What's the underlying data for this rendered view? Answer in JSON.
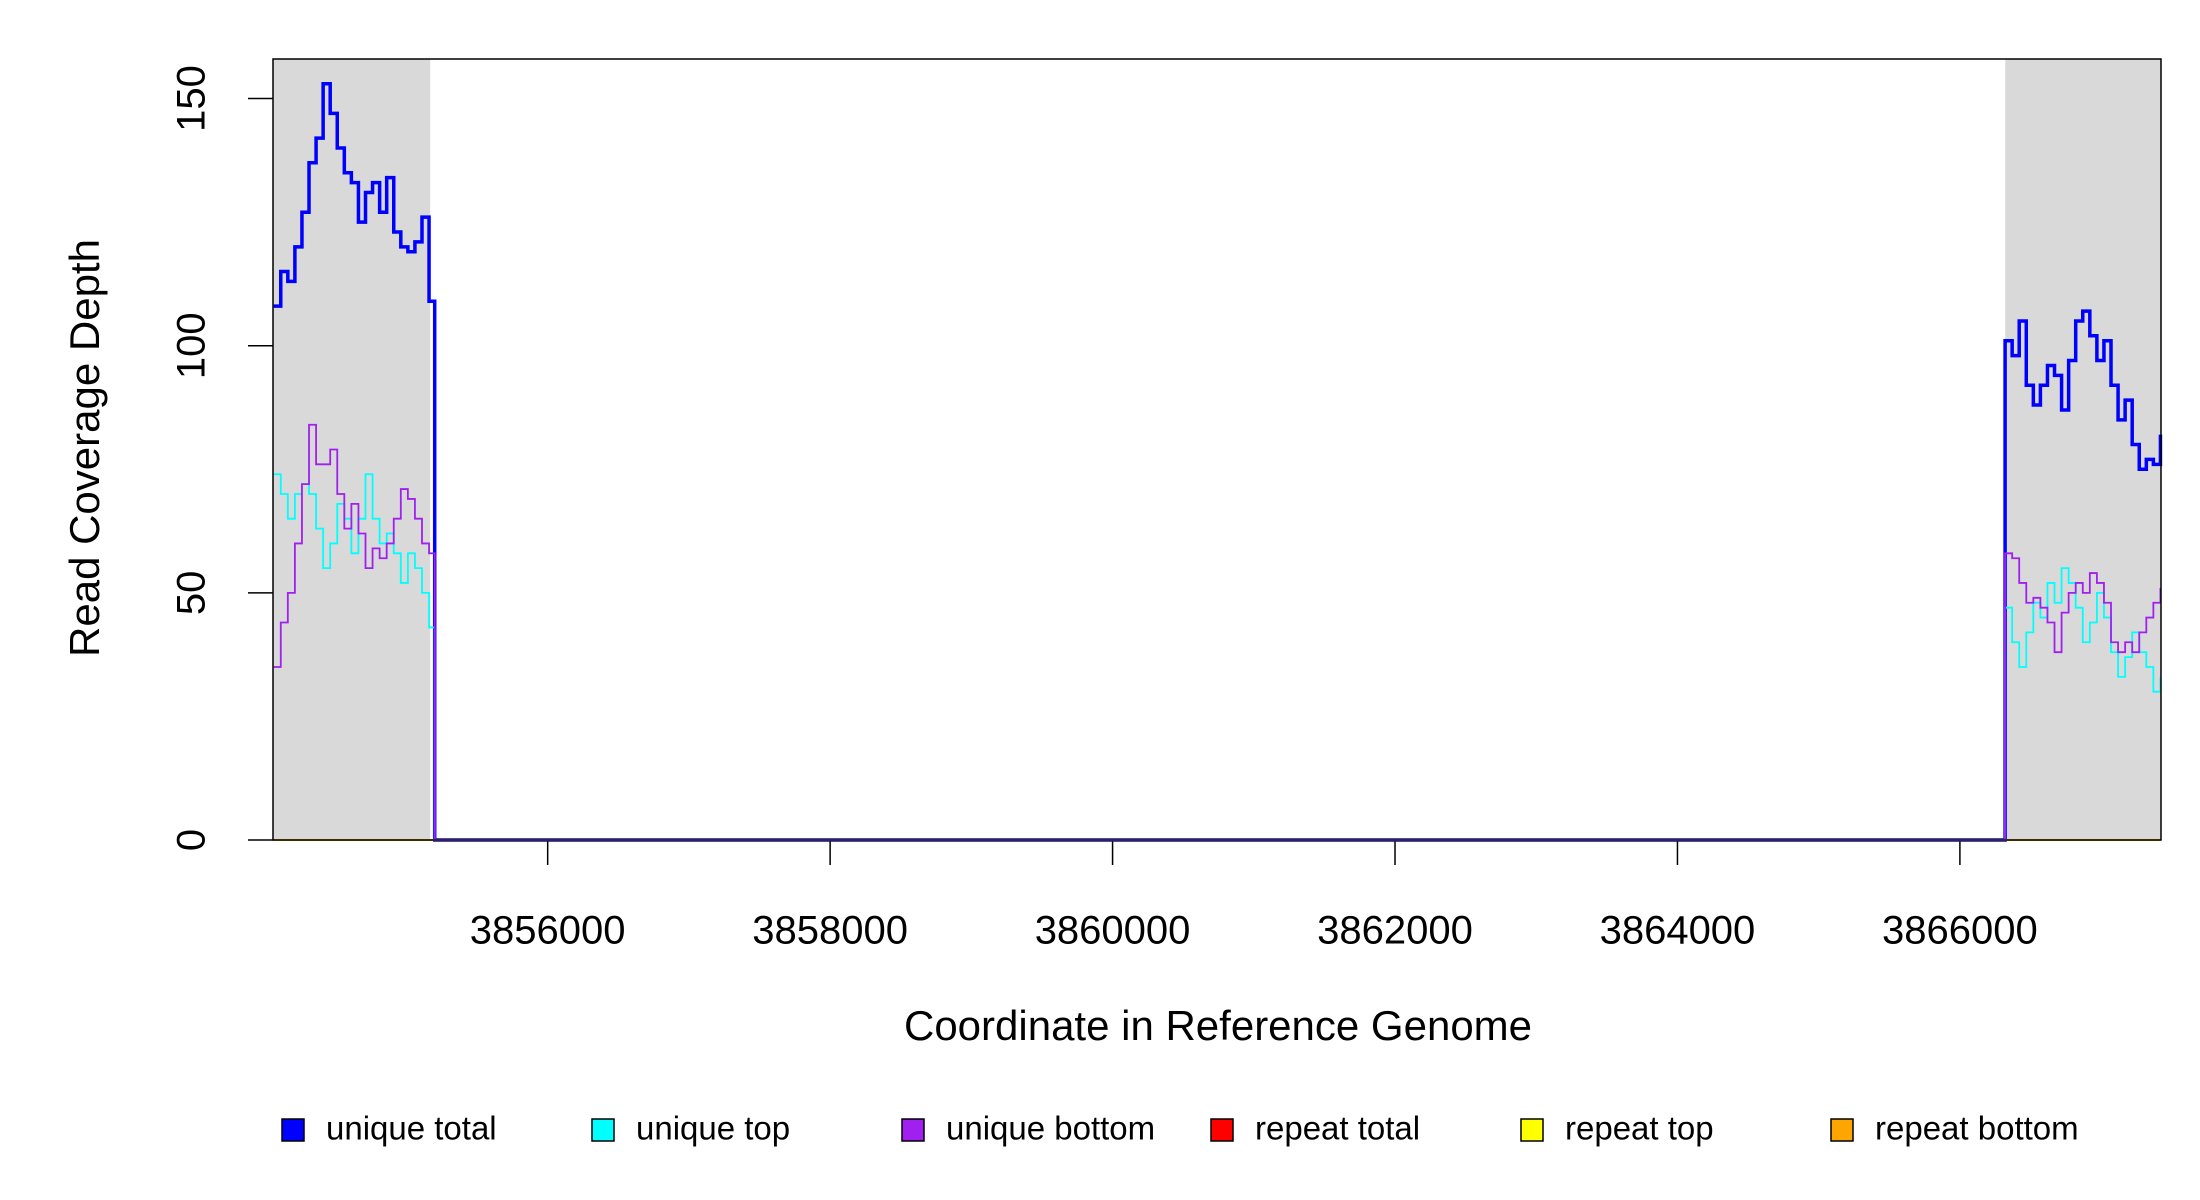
{
  "chart_data": {
    "type": "line",
    "step": true,
    "x_label": "Coordinate in Reference Genome",
    "y_label": "Read Coverage Depth",
    "x": [
      3854060,
      3854110,
      3854160,
      3854210,
      3854260,
      3854310,
      3854360,
      3854410,
      3854460,
      3854510,
      3854560,
      3854610,
      3854660,
      3854710,
      3854760,
      3854810,
      3854860,
      3854910,
      3854960,
      3855010,
      3855060,
      3855110,
      3855160,
      3855200,
      3866290,
      3866320,
      3866370,
      3866420,
      3866470,
      3866520,
      3866570,
      3866620,
      3866670,
      3866720,
      3866770,
      3866820,
      3866870,
      3866920,
      3866970,
      3867020,
      3867070,
      3867120,
      3867170,
      3867220,
      3867270,
      3867320,
      3867370,
      3867420
    ],
    "series": [
      {
        "name": "unique total",
        "color": "#0000ff",
        "values": [
          108,
          115,
          113,
          120,
          127,
          137,
          142,
          153,
          147,
          140,
          135,
          133,
          125,
          131,
          133,
          127,
          134,
          123,
          120,
          119,
          121,
          126,
          109,
          0,
          0,
          101,
          98,
          105,
          92,
          88,
          92,
          96,
          94,
          87,
          97,
          105,
          107,
          102,
          97,
          101,
          92,
          85,
          89,
          80,
          75,
          77,
          76,
          82
        ]
      },
      {
        "name": "unique top",
        "color": "#00ffff",
        "values": [
          74,
          70,
          65,
          70,
          72,
          70,
          63,
          55,
          60,
          68,
          65,
          58,
          65,
          74,
          65,
          60,
          62,
          58,
          52,
          58,
          55,
          50,
          43,
          0,
          0,
          47,
          40,
          35,
          42,
          48,
          45,
          52,
          48,
          55,
          52,
          47,
          40,
          44,
          50,
          45,
          38,
          33,
          37,
          42,
          38,
          35,
          30,
          33
        ]
      },
      {
        "name": "unique bottom",
        "color": "#a020f0",
        "values": [
          35,
          44,
          50,
          60,
          72,
          84,
          76,
          76,
          79,
          70,
          63,
          68,
          62,
          55,
          59,
          57,
          60,
          65,
          71,
          69,
          65,
          60,
          58,
          0,
          0,
          58,
          57,
          52,
          48,
          49,
          47,
          44,
          38,
          46,
          50,
          52,
          50,
          54,
          52,
          48,
          40,
          38,
          40,
          38,
          42,
          45,
          48,
          51
        ]
      },
      {
        "name": "repeat total",
        "color": "#ff0000",
        "values": [
          0,
          0,
          0,
          0,
          0,
          0,
          0,
          0,
          0,
          0,
          0,
          0,
          0,
          0,
          0,
          0,
          0,
          0,
          0,
          0,
          0,
          0,
          0,
          0,
          0,
          0,
          0,
          0,
          0,
          0,
          0,
          0,
          0,
          0,
          0,
          0,
          0,
          0,
          0,
          0,
          0,
          0,
          0,
          0,
          0,
          0,
          0,
          0
        ]
      },
      {
        "name": "repeat top",
        "color": "#ffff00",
        "values": [
          0,
          0,
          0,
          0,
          0,
          0,
          0,
          0,
          0,
          0,
          0,
          0,
          0,
          0,
          0,
          0,
          0,
          0,
          0,
          0,
          0,
          0,
          0,
          0,
          0,
          0,
          0,
          0,
          0,
          0,
          0,
          0,
          0,
          0,
          0,
          0,
          0,
          0,
          0,
          0,
          0,
          0,
          0,
          0,
          0,
          0,
          0,
          0
        ]
      },
      {
        "name": "repeat bottom",
        "color": "#ffa500",
        "values": [
          0,
          0,
          0,
          0,
          0,
          0,
          0,
          0,
          0,
          0,
          0,
          0,
          0,
          0,
          0,
          0,
          0,
          0,
          0,
          0,
          0,
          0,
          0,
          0,
          0,
          0,
          0,
          0,
          0,
          0,
          0,
          0,
          0,
          0,
          0,
          0,
          0,
          0,
          0,
          0,
          0,
          0,
          0,
          0,
          0,
          0,
          0,
          0
        ]
      }
    ],
    "shaded_regions": [
      [
        3854055,
        3855168
      ],
      [
        3866321,
        3867424
      ]
    ],
    "shade_color": "#d9d9d9",
    "xlim": [
      3854055,
      3867424
    ],
    "ylim": [
      0,
      158
    ],
    "xticks": [
      3856000,
      3858000,
      3860000,
      3862000,
      3864000,
      3866000
    ],
    "yticks": [
      0,
      50,
      100,
      150
    ],
    "legend": "bottom"
  }
}
